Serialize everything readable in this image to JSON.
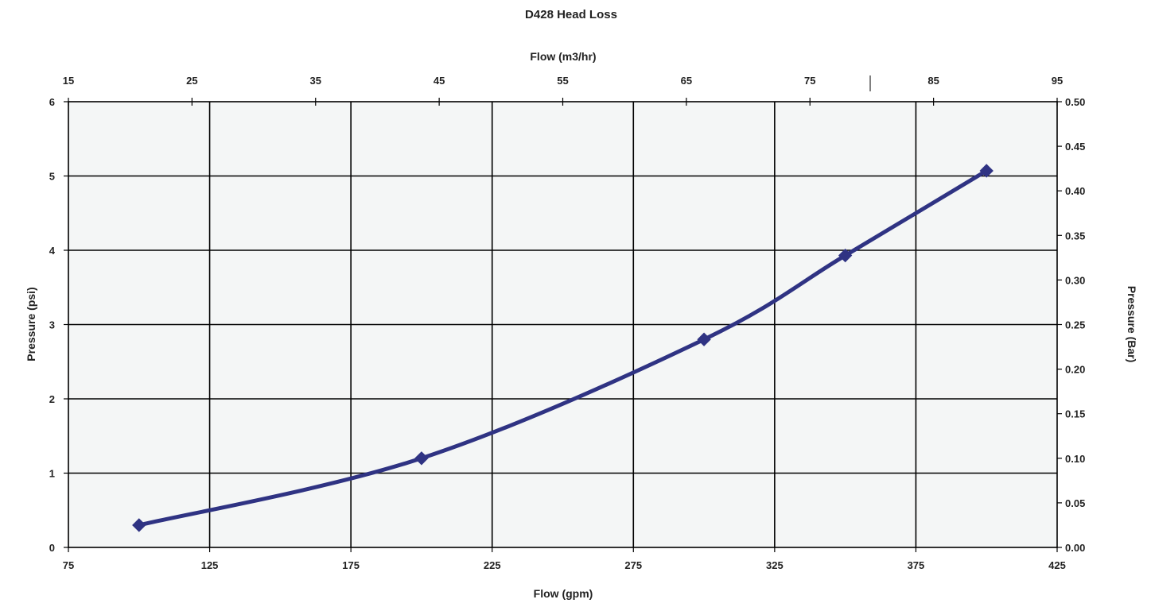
{
  "chart_data": {
    "type": "line",
    "title": "D428 Head Loss",
    "xlabel": "Flow (gpm)",
    "x2label": "Flow (m3/hr)",
    "ylabel": "Pressure (psi)",
    "y2label": "Pressure (Bar)",
    "xlim": [
      75,
      425
    ],
    "ylim": [
      0,
      6
    ],
    "x2lim": [
      15,
      95
    ],
    "y2lim": [
      0,
      0.5
    ],
    "x_ticks": [
      "75",
      "125",
      "175",
      "225",
      "275",
      "325",
      "375",
      "425"
    ],
    "y_ticks": [
      "0",
      "1",
      "2",
      "3",
      "4",
      "5",
      "6"
    ],
    "x2_ticks": [
      "15",
      "25",
      "35",
      "45",
      "55",
      "65",
      "75",
      "85",
      "95"
    ],
    "y2_ticks": [
      "0.00",
      "0.05",
      "0.10",
      "0.15",
      "0.20",
      "0.25",
      "0.30",
      "0.35",
      "0.40",
      "0.45",
      "0.50"
    ],
    "grid": true,
    "plot_background": "#f4f6f6",
    "series": [
      {
        "x": [
          100,
          200,
          300,
          350,
          400
        ],
        "y": [
          0.3,
          1.2,
          2.8,
          3.93,
          5.07
        ],
        "color": "#2f3383",
        "marker": "diamond"
      }
    ]
  }
}
